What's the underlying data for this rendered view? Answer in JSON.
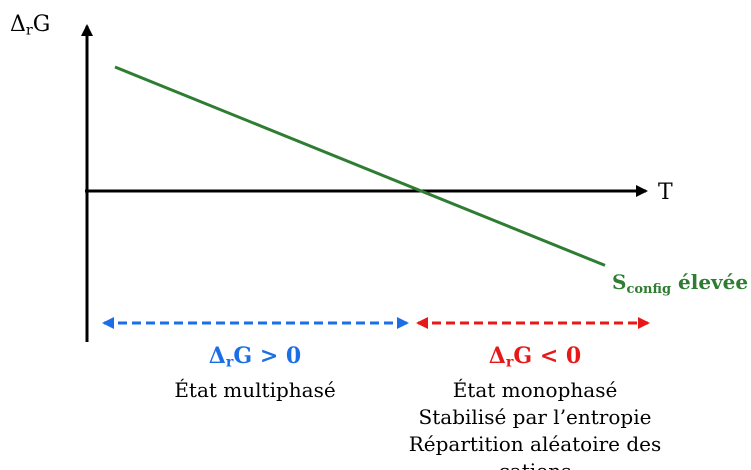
{
  "chart_data": {
    "type": "line",
    "title": "",
    "ylabel": "Δ_rG",
    "ylabel_parts": {
      "main": "Δ",
      "sub": "r",
      "tail": "G"
    },
    "xlabel": "T",
    "axis_ticks": false,
    "grid": false,
    "series": [
      {
        "name": "S_config élevée",
        "label_parts": {
          "main": "S",
          "sub": "config",
          "tail": " élevée"
        },
        "color": "#2e7d32",
        "x": [
          0.0,
          1.0
        ],
        "y": [
          1.0,
          -0.6
        ]
      }
    ],
    "regions": [
      {
        "color": "#1a6fe6",
        "condition": {
          "main": "Δ",
          "sub": "r",
          "tail": "G > 0"
        },
        "lines": [
          "État multiphasé"
        ]
      },
      {
        "color": "#e81818",
        "condition": {
          "main": "Δ",
          "sub": "r",
          "tail": "G < 0"
        },
        "lines": [
          "État monophasé",
          "Stabilisé par l’entropie",
          "Répartition aléatoire des cations"
        ]
      }
    ]
  }
}
